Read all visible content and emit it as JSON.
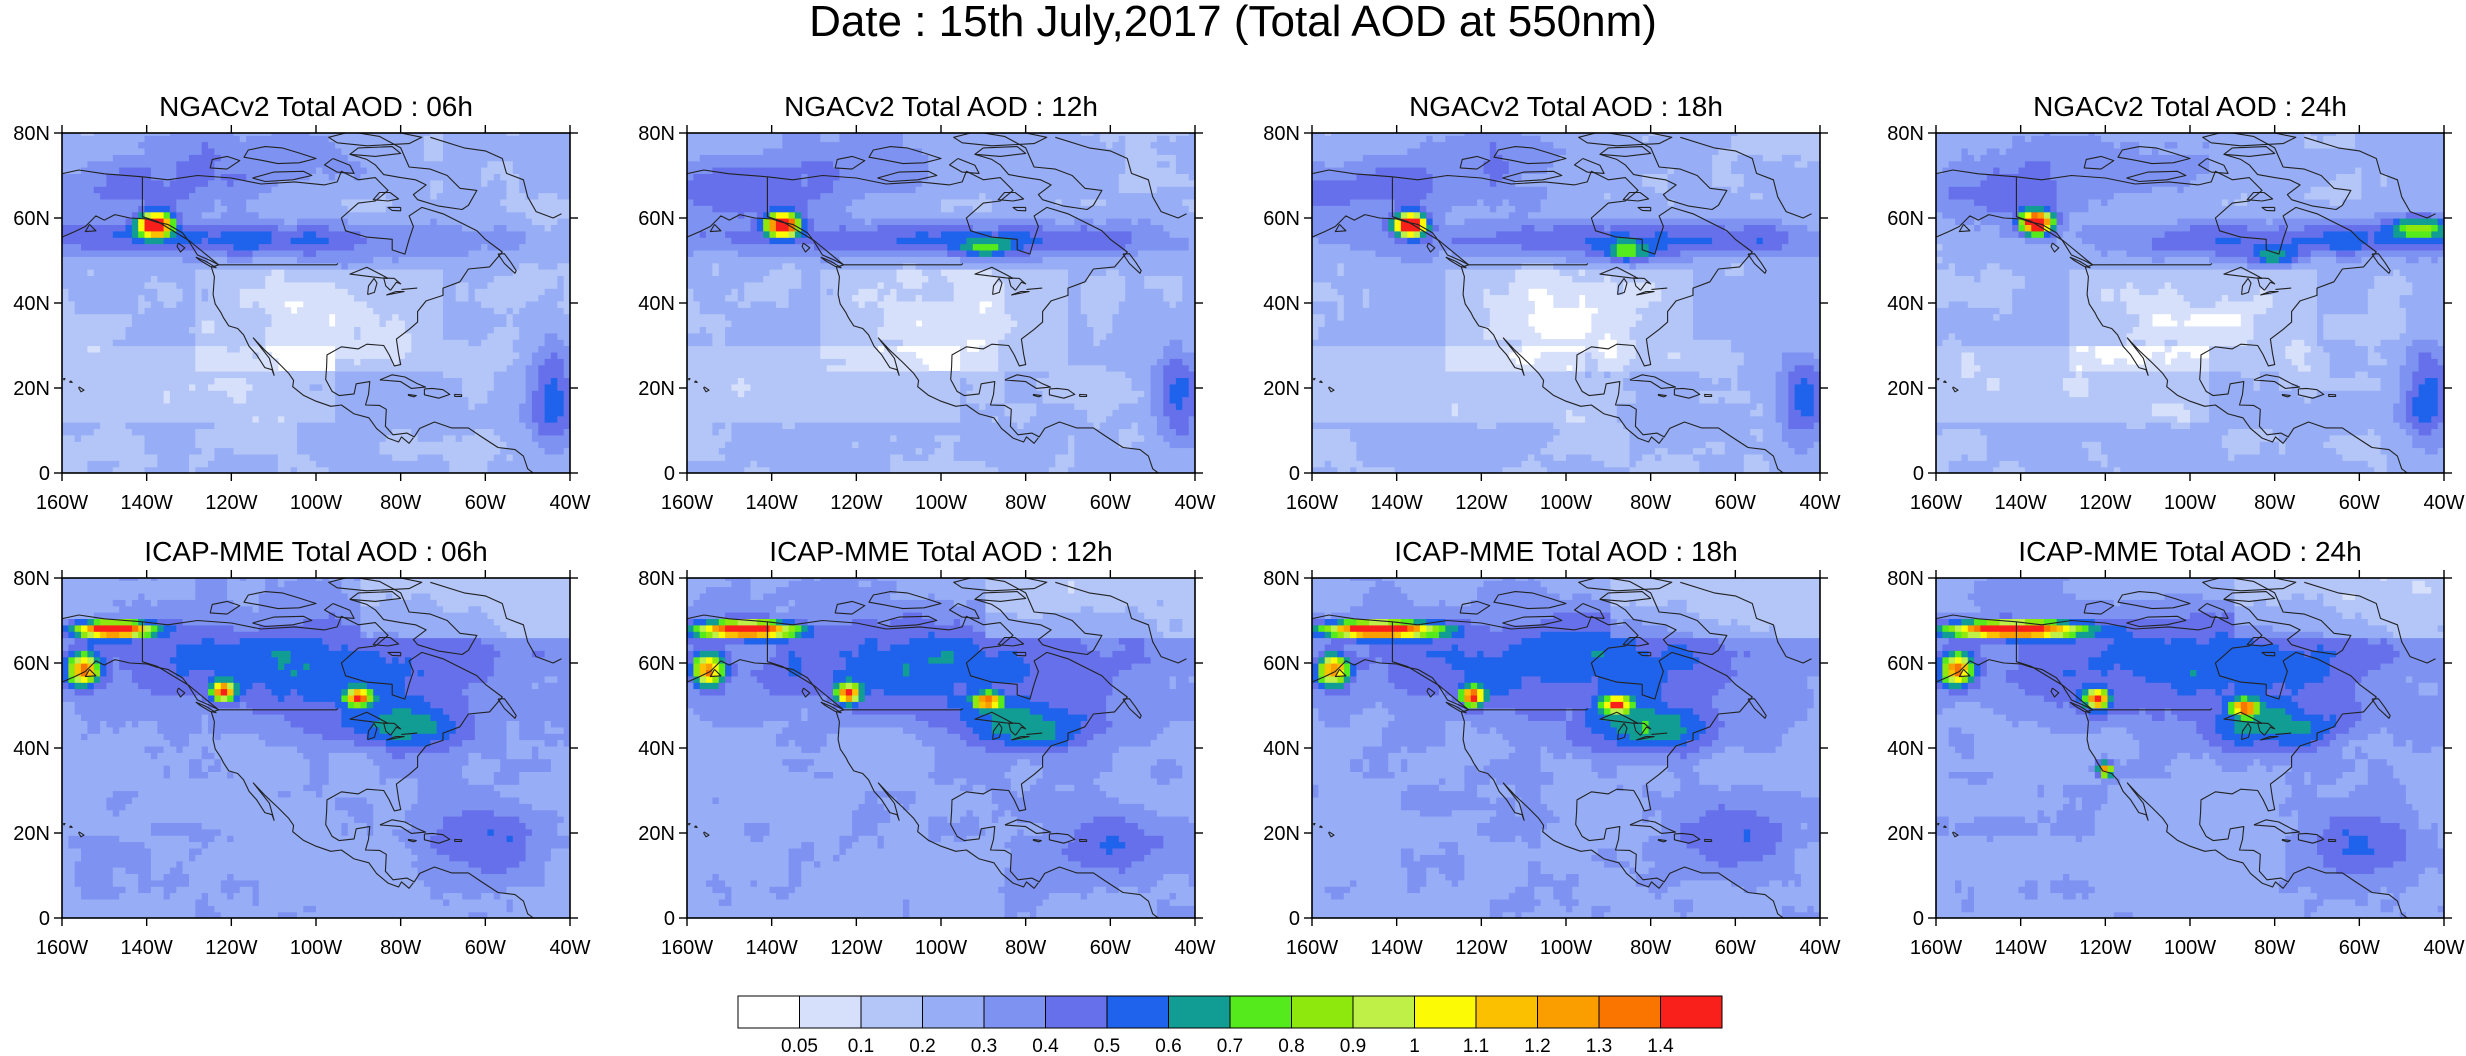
{
  "title": "Date : 15th July,2017 (Total AOD at 550nm)",
  "x_ticks": [
    "160W",
    "140W",
    "120W",
    "100W",
    "80W",
    "60W",
    "40W"
  ],
  "y_ticks": [
    "0",
    "20N",
    "40N",
    "60N",
    "80N"
  ],
  "map_extent": {
    "lon": [
      -160,
      -40
    ],
    "lat": [
      0,
      80
    ]
  },
  "panels": [
    {
      "id": "ngac-06",
      "title": "NGACv2 Total AOD : 06h"
    },
    {
      "id": "ngac-12",
      "title": "NGACv2 Total AOD : 12h"
    },
    {
      "id": "ngac-18",
      "title": "NGACv2 Total AOD : 18h"
    },
    {
      "id": "ngac-24",
      "title": "NGACv2 Total AOD : 24h"
    },
    {
      "id": "icap-06",
      "title": "ICAP-MME Total AOD : 06h"
    },
    {
      "id": "icap-12",
      "title": "ICAP-MME Total AOD : 12h"
    },
    {
      "id": "icap-18",
      "title": "ICAP-MME Total AOD : 18h"
    },
    {
      "id": "icap-24",
      "title": "ICAP-MME Total AOD : 24h"
    }
  ],
  "colorbar": {
    "colors": [
      "#ffffff",
      "#d6e0fb",
      "#b4c5f7",
      "#97aef6",
      "#7e92f2",
      "#6670ea",
      "#1f63ec",
      "#119c94",
      "#55ea1c",
      "#8ee80d",
      "#bff048",
      "#fdfa06",
      "#fbc000",
      "#fa9e00",
      "#fa7400",
      "#f9201c"
    ],
    "labels": [
      "0.05",
      "0.1",
      "0.2",
      "0.3",
      "0.4",
      "0.5",
      "0.6",
      "0.7",
      "0.8",
      "0.9",
      "1",
      "1.1",
      "1.2",
      "1.3",
      "1.4"
    ]
  }
}
